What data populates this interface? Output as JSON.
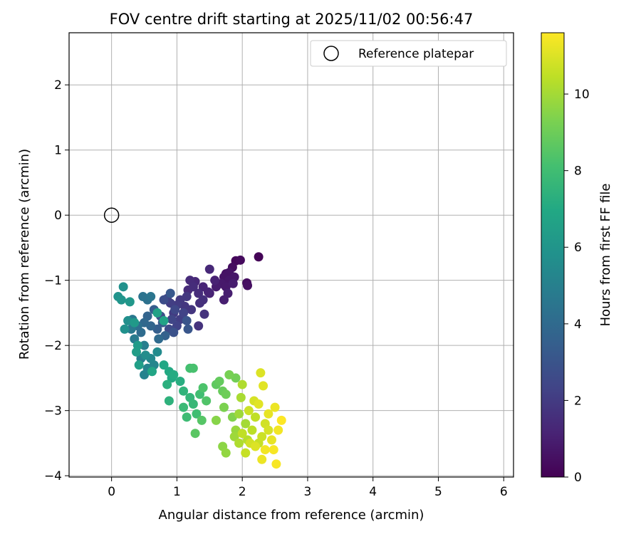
{
  "chart_data": {
    "type": "scatter",
    "title": "FOV centre drift starting at 2025/11/02 00:56:47",
    "xlabel": "Angular distance from reference (arcmin)",
    "ylabel": "Rotation from reference (arcmin)",
    "xlim": [
      -0.65,
      6.15
    ],
    "ylim": [
      -4.02,
      2.8
    ],
    "xticks": [
      0,
      1,
      2,
      3,
      4,
      5,
      6
    ],
    "yticks": [
      -4,
      -3,
      -2,
      -1,
      0,
      1,
      2
    ],
    "grid": true,
    "legend": {
      "placement": "top-right",
      "entries": [
        "Reference platepar"
      ]
    },
    "reference_point": {
      "label": "Reference platepar",
      "x": 0,
      "y": 0
    },
    "colorbar": {
      "label": "Hours from first FF file",
      "colormap": "viridis",
      "range": [
        0,
        11.6
      ],
      "ticks": [
        0,
        2,
        4,
        6,
        8,
        10
      ]
    },
    "series": [
      {
        "name": "",
        "marker_color_by": "hours",
        "columns": [
          "x",
          "y",
          "hours"
        ],
        "points": [
          [
            2.25,
            -0.64,
            0.1
          ],
          [
            1.9,
            -0.7,
            0.2
          ],
          [
            1.97,
            -0.69,
            0.3
          ],
          [
            1.85,
            -0.8,
            0.4
          ],
          [
            2.07,
            -1.04,
            0.4
          ],
          [
            2.08,
            -1.08,
            0.5
          ],
          [
            1.75,
            -0.9,
            0.5
          ],
          [
            1.8,
            -0.88,
            0.6
          ],
          [
            1.72,
            -0.95,
            0.6
          ],
          [
            1.88,
            -0.95,
            0.7
          ],
          [
            1.8,
            -1.0,
            0.7
          ],
          [
            1.68,
            -1.05,
            0.8
          ],
          [
            1.75,
            -1.1,
            0.8
          ],
          [
            1.86,
            -1.05,
            0.9
          ],
          [
            1.6,
            -1.1,
            0.9
          ],
          [
            1.78,
            -1.2,
            1.0
          ],
          [
            1.72,
            -1.3,
            1.0
          ],
          [
            1.58,
            -1.0,
            1.1
          ],
          [
            1.5,
            -1.2,
            1.1
          ],
          [
            1.4,
            -1.1,
            1.2
          ],
          [
            1.48,
            -1.18,
            1.2
          ],
          [
            1.5,
            -0.83,
            1.3
          ],
          [
            1.28,
            -1.02,
            1.3
          ],
          [
            1.2,
            -1.0,
            1.4
          ],
          [
            1.17,
            -1.15,
            1.4
          ],
          [
            1.33,
            -1.2,
            1.5
          ],
          [
            1.25,
            -1.1,
            1.5
          ],
          [
            1.4,
            -1.3,
            1.6
          ],
          [
            1.35,
            -1.35,
            1.6
          ],
          [
            1.42,
            -1.52,
            1.7
          ],
          [
            1.33,
            -1.7,
            1.7
          ],
          [
            1.22,
            -1.45,
            1.8
          ],
          [
            1.12,
            -1.4,
            1.8
          ],
          [
            1.15,
            -1.25,
            1.9
          ],
          [
            1.05,
            -1.3,
            1.9
          ],
          [
            1.0,
            -1.38,
            2.0
          ],
          [
            0.95,
            -1.5,
            2.0
          ],
          [
            0.9,
            -1.35,
            2.1
          ],
          [
            1.05,
            -1.6,
            2.1
          ],
          [
            0.85,
            -1.28,
            2.2
          ],
          [
            1.0,
            -1.7,
            2.3
          ],
          [
            1.1,
            -1.5,
            2.3
          ],
          [
            0.92,
            -1.6,
            2.4
          ],
          [
            0.97,
            -1.45,
            2.5
          ],
          [
            0.88,
            -1.75,
            2.6
          ],
          [
            0.8,
            -1.3,
            2.7
          ],
          [
            0.75,
            -1.55,
            2.8
          ],
          [
            0.95,
            -1.8,
            2.9
          ],
          [
            1.15,
            -1.62,
            3.0
          ],
          [
            1.17,
            -1.75,
            3.1
          ],
          [
            0.9,
            -1.2,
            3.2
          ],
          [
            0.78,
            -1.65,
            3.3
          ],
          [
            0.65,
            -1.45,
            3.4
          ],
          [
            0.7,
            -1.75,
            3.5
          ],
          [
            0.82,
            -1.85,
            3.6
          ],
          [
            0.55,
            -1.55,
            3.7
          ],
          [
            0.6,
            -1.7,
            3.8
          ],
          [
            0.5,
            -1.65,
            3.9
          ],
          [
            0.72,
            -1.9,
            4.0
          ],
          [
            0.45,
            -1.8,
            4.1
          ],
          [
            0.4,
            -1.7,
            4.2
          ],
          [
            0.55,
            -1.3,
            4.3
          ],
          [
            0.48,
            -1.25,
            4.4
          ],
          [
            0.6,
            -1.25,
            4.5
          ],
          [
            0.32,
            -1.6,
            4.6
          ],
          [
            0.3,
            -1.75,
            4.7
          ],
          [
            0.35,
            -1.9,
            4.8
          ],
          [
            0.5,
            -2.0,
            4.9
          ],
          [
            0.45,
            -2.2,
            5.0
          ],
          [
            0.5,
            -2.45,
            5.1
          ],
          [
            0.55,
            -2.35,
            5.2
          ],
          [
            0.65,
            -2.3,
            5.3
          ],
          [
            0.6,
            -2.2,
            5.4
          ],
          [
            0.7,
            -2.1,
            5.5
          ],
          [
            0.52,
            -2.15,
            5.6
          ],
          [
            0.25,
            -1.62,
            5.7
          ],
          [
            0.2,
            -1.75,
            5.8
          ],
          [
            0.18,
            -1.1,
            5.8
          ],
          [
            0.1,
            -1.25,
            5.9
          ],
          [
            0.15,
            -1.3,
            6.0
          ],
          [
            0.28,
            -1.33,
            6.1
          ],
          [
            0.35,
            -1.65,
            6.2
          ],
          [
            0.4,
            -2.0,
            6.3
          ],
          [
            0.38,
            -2.1,
            6.4
          ],
          [
            0.42,
            -2.3,
            6.5
          ],
          [
            0.7,
            -1.5,
            6.6
          ],
          [
            0.8,
            -1.62,
            6.7
          ],
          [
            0.62,
            -2.4,
            6.8
          ],
          [
            0.8,
            -2.3,
            6.9
          ],
          [
            0.88,
            -2.4,
            7.0
          ],
          [
            0.92,
            -2.5,
            7.0
          ],
          [
            0.95,
            -2.45,
            7.1
          ],
          [
            1.05,
            -2.55,
            7.2
          ],
          [
            0.85,
            -2.6,
            7.3
          ],
          [
            0.88,
            -2.85,
            7.4
          ],
          [
            1.1,
            -2.7,
            7.5
          ],
          [
            1.2,
            -2.8,
            7.6
          ],
          [
            1.25,
            -2.9,
            7.7
          ],
          [
            1.1,
            -2.95,
            7.8
          ],
          [
            1.15,
            -3.1,
            7.9
          ],
          [
            1.3,
            -3.05,
            8.0
          ],
          [
            1.35,
            -2.75,
            8.0
          ],
          [
            1.2,
            -2.35,
            8.1
          ],
          [
            1.25,
            -2.35,
            8.2
          ],
          [
            1.4,
            -2.65,
            8.3
          ],
          [
            1.45,
            -2.85,
            8.4
          ],
          [
            1.38,
            -3.15,
            8.5
          ],
          [
            1.28,
            -3.35,
            8.6
          ],
          [
            1.6,
            -2.6,
            8.7
          ],
          [
            1.65,
            -2.55,
            8.8
          ],
          [
            1.7,
            -2.7,
            8.9
          ],
          [
            1.75,
            -2.75,
            9.0
          ],
          [
            1.9,
            -2.5,
            9.1
          ],
          [
            1.8,
            -2.45,
            9.2
          ],
          [
            1.72,
            -2.95,
            9.3
          ],
          [
            1.85,
            -3.1,
            9.4
          ],
          [
            1.6,
            -3.15,
            9.5
          ],
          [
            1.7,
            -3.55,
            9.6
          ],
          [
            1.75,
            -3.65,
            9.7
          ],
          [
            1.9,
            -3.3,
            9.8
          ],
          [
            1.95,
            -3.05,
            9.9
          ],
          [
            2.05,
            -3.2,
            10.0
          ],
          [
            1.98,
            -2.8,
            10.1
          ],
          [
            2.0,
            -2.6,
            10.2
          ],
          [
            2.08,
            -3.45,
            10.3
          ],
          [
            2.15,
            -3.3,
            10.4
          ],
          [
            2.2,
            -3.1,
            10.5
          ],
          [
            2.25,
            -3.5,
            10.6
          ],
          [
            2.3,
            -3.4,
            10.7
          ],
          [
            2.35,
            -3.2,
            10.8
          ],
          [
            2.4,
            -3.3,
            10.9
          ],
          [
            2.28,
            -2.42,
            11.0
          ],
          [
            2.32,
            -2.62,
            11.1
          ],
          [
            2.4,
            -3.05,
            11.2
          ],
          [
            2.5,
            -2.95,
            11.3
          ],
          [
            2.55,
            -3.3,
            11.4
          ],
          [
            2.48,
            -3.6,
            11.5
          ],
          [
            2.52,
            -3.82,
            11.5
          ],
          [
            2.6,
            -3.15,
            11.6
          ],
          [
            2.3,
            -3.75,
            11.3
          ],
          [
            2.2,
            -3.55,
            11.0
          ],
          [
            2.12,
            -3.5,
            10.8
          ],
          [
            2.05,
            -3.65,
            10.6
          ],
          [
            1.95,
            -3.5,
            10.2
          ],
          [
            1.88,
            -3.4,
            9.9
          ],
          [
            2.0,
            -3.35,
            10.5
          ],
          [
            2.1,
            -3.0,
            10.7
          ],
          [
            2.18,
            -2.85,
            10.9
          ],
          [
            2.25,
            -2.9,
            11.1
          ],
          [
            2.35,
            -3.6,
            11.4
          ],
          [
            2.45,
            -3.45,
            11.2
          ]
        ]
      }
    ]
  }
}
